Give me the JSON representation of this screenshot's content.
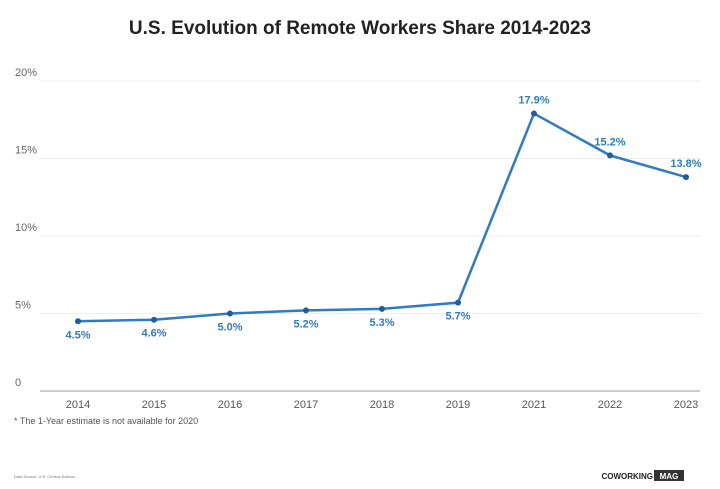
{
  "chart_data": {
    "type": "line",
    "title": "U.S. Evolution of Remote Workers Share 2014-2023",
    "categories": [
      "2014",
      "2015",
      "2016",
      "2017",
      "2018",
      "2019",
      "2021",
      "2022",
      "2023"
    ],
    "values": [
      4.5,
      4.6,
      5.0,
      5.2,
      5.3,
      5.7,
      17.9,
      15.2,
      13.8
    ],
    "data_labels": [
      "4.5%",
      "4.6%",
      "5.0%",
      "5.2%",
      "5.3%",
      "5.7%",
      "17.9%",
      "15.2%",
      "13.8%"
    ],
    "ylim": [
      0,
      20
    ],
    "yticks": [
      0,
      5,
      10,
      15,
      20
    ],
    "ytick_labels": [
      "0",
      "5%",
      "10%",
      "15%",
      "20%"
    ],
    "grid": true,
    "line_color": "#2f7cc0",
    "xlabel": "",
    "ylabel": ""
  },
  "footnote": "* The 1-Year estimate is not available for 2020",
  "source": "Data Source: U.S. Census Bureau",
  "logo": {
    "text1": "COWORKING",
    "text2": "MAG"
  }
}
